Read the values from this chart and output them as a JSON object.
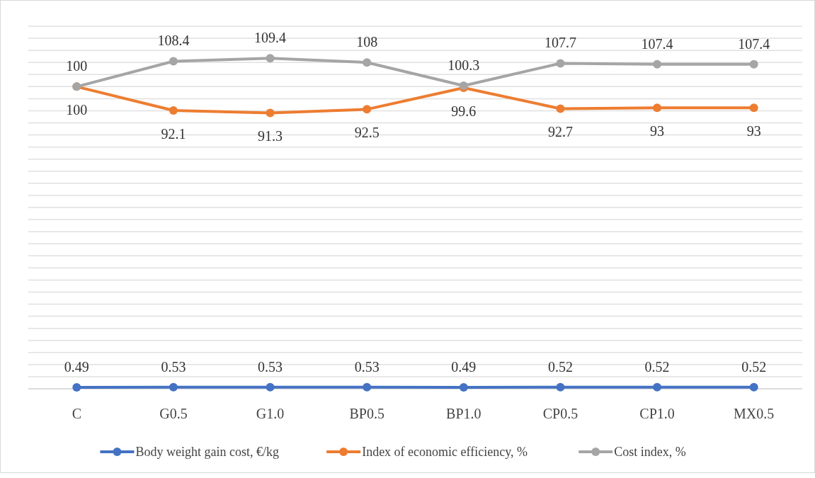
{
  "chart_data": {
    "type": "line",
    "categories": [
      "C",
      "G0.5",
      "G1.0",
      "BP0.5",
      "BP1.0",
      "CP0.5",
      "CP1.0",
      "MX0.5"
    ],
    "series": [
      {
        "name": "Body weight gain cost, €/kg",
        "color": "#4472c4",
        "values": [
          0.49,
          0.53,
          0.53,
          0.53,
          0.49,
          0.52,
          0.52,
          0.52
        ]
      },
      {
        "name": "Index of economic efficiency, %",
        "color": "#ed7d31",
        "values": [
          100,
          92.1,
          91.3,
          92.5,
          99.6,
          92.7,
          93,
          93
        ]
      },
      {
        "name": "Cost index, %",
        "color": "#a5a5a5",
        "values": [
          100,
          108.4,
          109.4,
          108,
          100.3,
          107.7,
          107.4,
          107.4
        ]
      }
    ],
    "ylim": [
      0,
      120
    ],
    "yticks": [
      {
        "value": 0,
        "label": null
      },
      {
        "value": 4,
        "label": null
      },
      {
        "value": 8,
        "label": null
      },
      {
        "value": 12,
        "label": null
      },
      {
        "value": 16,
        "label": null
      },
      {
        "value": 20,
        "label": null
      },
      {
        "value": 24,
        "label": null
      },
      {
        "value": 28,
        "label": null
      },
      {
        "value": 32,
        "label": null
      },
      {
        "value": 36,
        "label": null
      },
      {
        "value": 40,
        "label": null
      },
      {
        "value": 44,
        "label": null
      },
      {
        "value": 48,
        "label": null
      },
      {
        "value": 52,
        "label": null
      },
      {
        "value": 56,
        "label": null
      },
      {
        "value": 60,
        "label": null
      },
      {
        "value": 64,
        "label": null
      },
      {
        "value": 68,
        "label": null
      },
      {
        "value": 72,
        "label": null
      },
      {
        "value": 76,
        "label": null
      },
      {
        "value": 80,
        "label": null
      },
      {
        "value": 84,
        "label": null
      },
      {
        "value": 88,
        "label": null
      },
      {
        "value": 92,
        "label": null
      },
      {
        "value": 96,
        "label": null
      },
      {
        "value": 100,
        "label": null
      },
      {
        "value": 104,
        "label": null
      },
      {
        "value": 108,
        "label": null
      },
      {
        "value": 112,
        "label": null
      },
      {
        "value": 116,
        "label": null
      },
      {
        "value": 120,
        "label": null
      }
    ],
    "grid": "y",
    "data_labels": true,
    "marker": "circle",
    "line_style": "solid",
    "legend": "bottom",
    "tick_labels": "x"
  }
}
